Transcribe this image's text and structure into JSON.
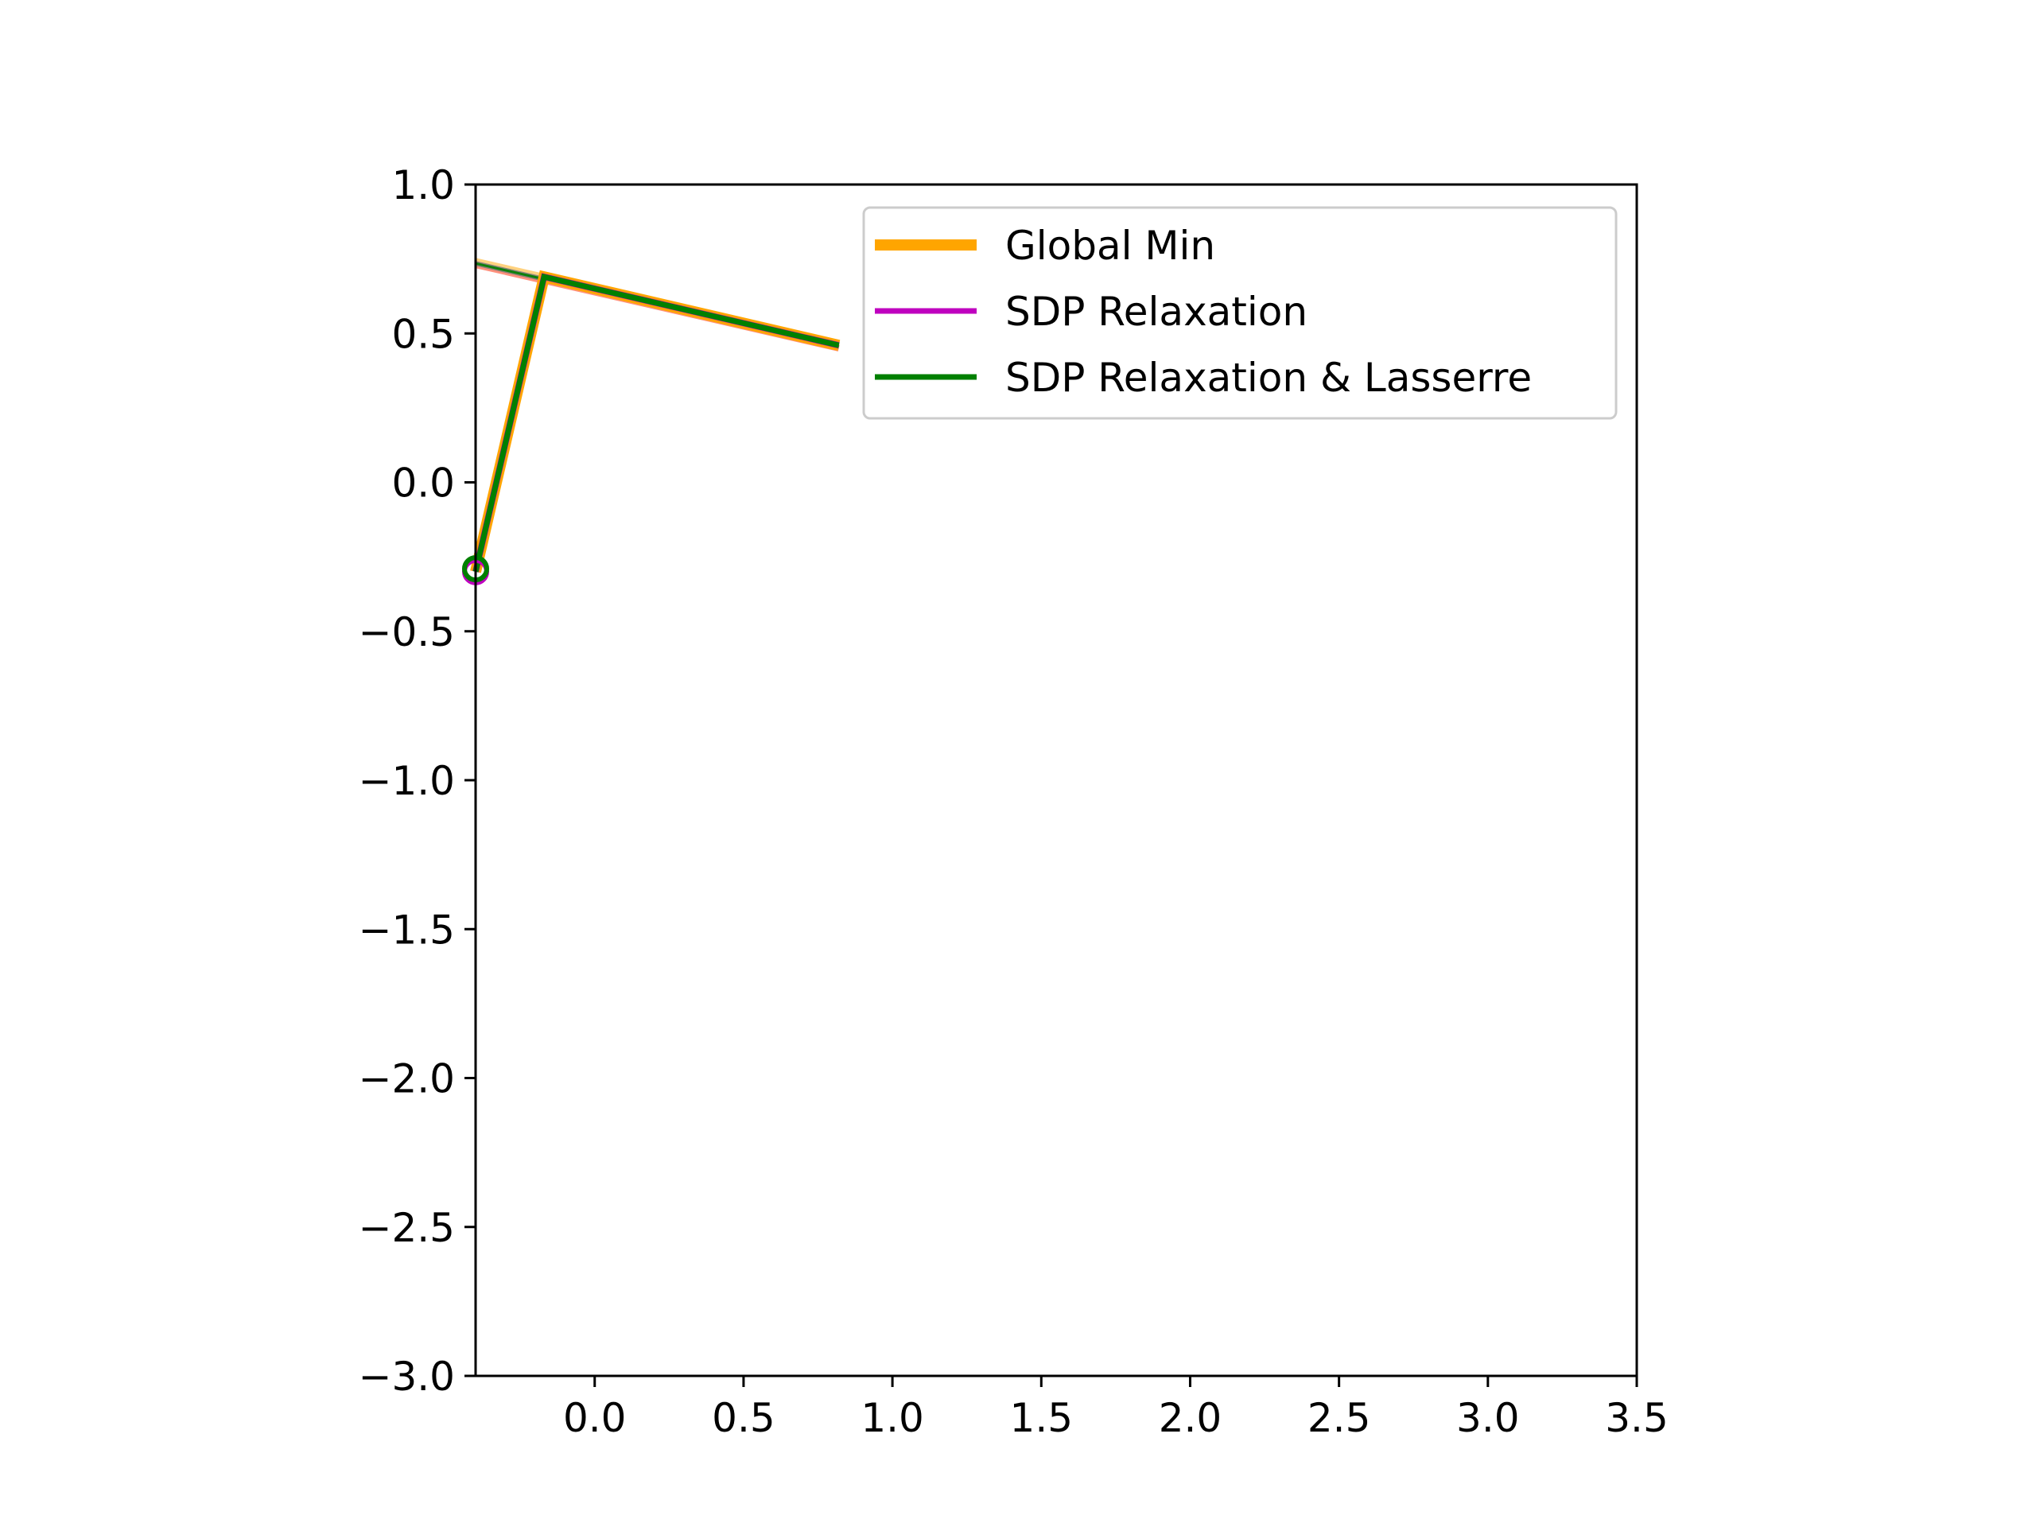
{
  "chart_data": {
    "type": "line",
    "title": "",
    "xlabel": "",
    "ylabel": "",
    "xlim": [
      -0.4,
      3.5
    ],
    "ylim": [
      -3.0,
      1.0
    ],
    "xticks": [
      0.0,
      0.5,
      1.0,
      1.5,
      2.0,
      2.5,
      3.0,
      3.5
    ],
    "yticks": [
      -3.0,
      -2.5,
      -2.0,
      -1.5,
      -1.0,
      -0.5,
      0.0,
      0.5,
      1.0
    ],
    "xtick_labels": [
      "0.0",
      "0.5",
      "1.0",
      "1.5",
      "2.0",
      "2.5",
      "3.0",
      "3.5"
    ],
    "ytick_labels": [
      "−3.0",
      "−2.5",
      "−2.0",
      "−1.5",
      "−1.0",
      "−0.5",
      "0.0",
      "0.5",
      "1.0"
    ],
    "grid": false,
    "legend": {
      "position": "upper-right"
    },
    "series": [
      {
        "name": "Global Min",
        "color": "#ffa500",
        "x": [
          -0.4,
          -0.17,
          0.82
        ],
        "y": [
          -0.3,
          0.69,
          0.46
        ]
      },
      {
        "name": "SDP Relaxation",
        "color": "#bf00bf",
        "x": [
          -0.4,
          -0.17,
          0.82
        ],
        "y": [
          -0.3,
          0.69,
          0.46
        ]
      },
      {
        "name": "SDP Relaxation & Lasserre",
        "color": "#008000",
        "x": [
          -0.4,
          -0.17,
          0.82
        ],
        "y": [
          -0.3,
          0.69,
          0.46
        ]
      }
    ],
    "extra_segments": [
      {
        "color": "#ffa500",
        "x": [
          -0.4,
          0.82
        ],
        "y": [
          0.74,
          0.46
        ]
      },
      {
        "color": "#ff6347",
        "x": [
          -0.4,
          0.82
        ],
        "y": [
          0.73,
          0.45
        ]
      },
      {
        "color": "#808080",
        "x": [
          -0.4,
          0.82
        ],
        "y": [
          0.735,
          0.455
        ]
      },
      {
        "color": "#008000",
        "x": [
          -0.4,
          0.82
        ],
        "y": [
          0.735,
          0.455
        ]
      }
    ],
    "markers": [
      {
        "color": "#bf00bf",
        "x": -0.4,
        "y": -0.3
      },
      {
        "color": "#008000",
        "x": -0.4,
        "y": -0.29
      }
    ]
  }
}
